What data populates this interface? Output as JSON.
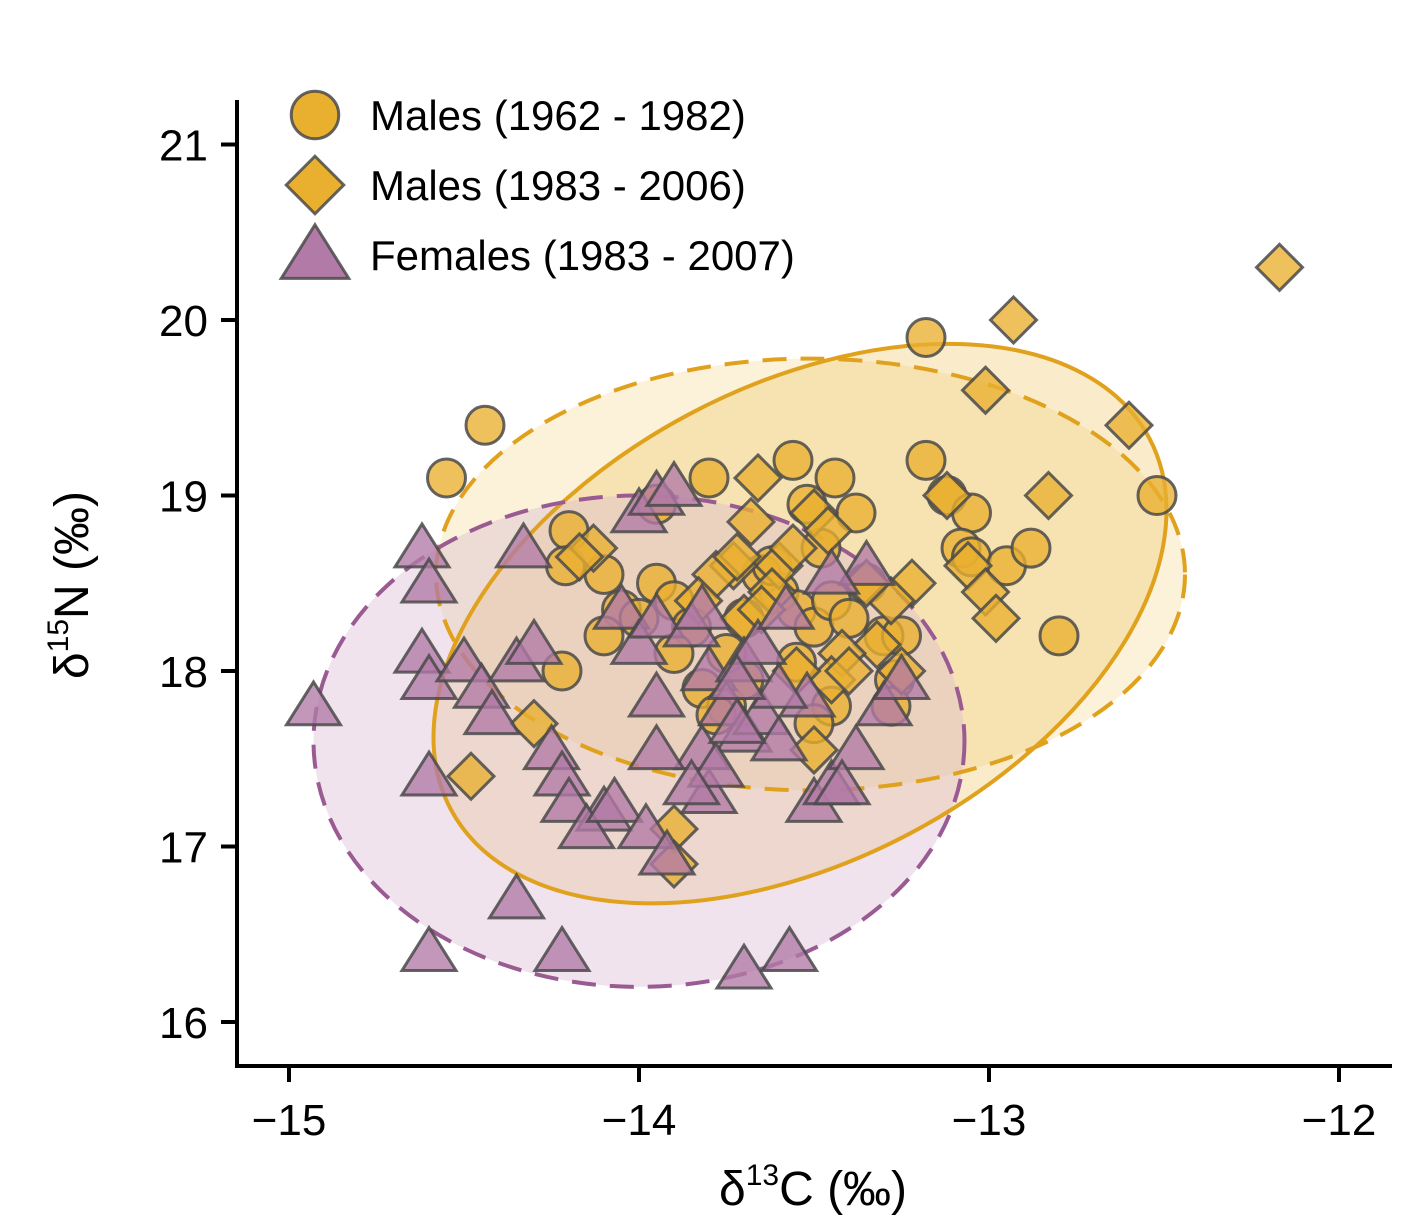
{
  "chart_data": {
    "type": "scatter",
    "xlabel": {
      "prefix": "δ",
      "sup": "13",
      "suffix": "C (‰)"
    },
    "ylabel": {
      "prefix": "δ",
      "sup": "15",
      "suffix": "N (‰)"
    },
    "xlim": [
      -15.15,
      -11.85
    ],
    "ylim": [
      15.75,
      21.3
    ],
    "xticks": [
      -15,
      -14,
      -13,
      -12
    ],
    "yticks": [
      16,
      17,
      18,
      19,
      20,
      21
    ],
    "xtick_labels": [
      "−15",
      "−14",
      "−13",
      "−12"
    ],
    "ytick_labels": [
      "16",
      "17",
      "18",
      "19",
      "20",
      "21"
    ],
    "grid": false,
    "legend_position": "top-left",
    "series": [
      {
        "name": "Males (1962 - 1982)",
        "marker": "circle",
        "color": "#E9B02F",
        "points": [
          [
            -14.44,
            19.4
          ],
          [
            -14.55,
            19.1
          ],
          [
            -14.2,
            18.8
          ],
          [
            -14.21,
            18.6
          ],
          [
            -14.1,
            18.55
          ],
          [
            -14.05,
            18.35
          ],
          [
            -14.1,
            18.2
          ],
          [
            -14.22,
            18.0
          ],
          [
            -13.95,
            18.5
          ],
          [
            -13.9,
            18.4
          ],
          [
            -13.85,
            18.25
          ],
          [
            -13.9,
            18.1
          ],
          [
            -13.82,
            17.9
          ],
          [
            -13.75,
            17.8
          ],
          [
            -13.7,
            18.3
          ],
          [
            -13.65,
            18.55
          ],
          [
            -13.6,
            18.45
          ],
          [
            -13.55,
            18.35
          ],
          [
            -13.5,
            18.25
          ],
          [
            -13.45,
            18.4
          ],
          [
            -13.4,
            18.3
          ],
          [
            -13.8,
            19.1
          ],
          [
            -13.56,
            19.2
          ],
          [
            -13.44,
            19.1
          ],
          [
            -13.38,
            18.9
          ],
          [
            -13.52,
            18.95
          ],
          [
            -13.62,
            18.6
          ],
          [
            -13.48,
            18.7
          ],
          [
            -13.35,
            18.5
          ],
          [
            -13.3,
            18.2
          ],
          [
            -13.25,
            18.2
          ],
          [
            -13.27,
            17.95
          ],
          [
            -13.28,
            17.8
          ],
          [
            -13.45,
            17.8
          ],
          [
            -13.5,
            17.7
          ],
          [
            -13.55,
            18.05
          ],
          [
            -13.7,
            17.95
          ],
          [
            -13.78,
            17.75
          ],
          [
            -13.18,
            19.9
          ],
          [
            -13.18,
            19.2
          ],
          [
            -13.12,
            19.0
          ],
          [
            -13.05,
            18.9
          ],
          [
            -13.08,
            18.7
          ],
          [
            -13.05,
            18.65
          ],
          [
            -12.95,
            18.6
          ],
          [
            -12.88,
            18.7
          ],
          [
            -12.8,
            18.2
          ],
          [
            -12.52,
            19.0
          ],
          [
            -13.95,
            18.95
          ],
          [
            -14.0,
            18.3
          ],
          [
            -13.75,
            18.1
          ]
        ]
      },
      {
        "name": "Males (1983 - 2006)",
        "marker": "diamond",
        "color": "#E9B02F",
        "points": [
          [
            -12.93,
            20.0
          ],
          [
            -12.6,
            19.4
          ],
          [
            -13.01,
            19.6
          ],
          [
            -12.83,
            19.0
          ],
          [
            -12.17,
            20.3
          ],
          [
            -13.12,
            19.0
          ],
          [
            -13.06,
            18.6
          ],
          [
            -13.01,
            18.45
          ],
          [
            -12.98,
            18.3
          ],
          [
            -13.22,
            18.5
          ],
          [
            -13.28,
            18.4
          ],
          [
            -13.32,
            18.15
          ],
          [
            -13.25,
            18.0
          ],
          [
            -13.35,
            18.5
          ],
          [
            -13.42,
            18.1
          ],
          [
            -13.45,
            17.95
          ],
          [
            -13.5,
            17.55
          ],
          [
            -13.6,
            18.6
          ],
          [
            -13.5,
            18.9
          ],
          [
            -13.46,
            18.8
          ],
          [
            -13.66,
            19.1
          ],
          [
            -13.68,
            18.85
          ],
          [
            -13.73,
            18.6
          ],
          [
            -13.78,
            18.55
          ],
          [
            -13.83,
            18.4
          ],
          [
            -13.7,
            18.3
          ],
          [
            -13.62,
            18.45
          ],
          [
            -13.56,
            18.7
          ],
          [
            -13.55,
            18.0
          ],
          [
            -14.13,
            18.7
          ],
          [
            -14.17,
            18.65
          ],
          [
            -14.3,
            17.7
          ],
          [
            -14.48,
            17.4
          ],
          [
            -13.9,
            17.1
          ],
          [
            -13.9,
            16.9
          ],
          [
            -13.72,
            18.65
          ],
          [
            -13.65,
            18.35
          ],
          [
            -13.4,
            18.0
          ]
        ]
      },
      {
        "name": "Females (1983 - 2007)",
        "marker": "triangle",
        "color": "#B27AA6",
        "points": [
          [
            -14.93,
            17.8
          ],
          [
            -14.62,
            18.7
          ],
          [
            -14.6,
            18.5
          ],
          [
            -14.62,
            18.1
          ],
          [
            -14.6,
            17.95
          ],
          [
            -14.5,
            18.05
          ],
          [
            -14.45,
            17.9
          ],
          [
            -14.42,
            17.75
          ],
          [
            -14.35,
            18.05
          ],
          [
            -14.3,
            18.15
          ],
          [
            -14.33,
            18.7
          ],
          [
            -14.6,
            17.4
          ],
          [
            -14.25,
            17.55
          ],
          [
            -14.22,
            17.4
          ],
          [
            -14.2,
            17.25
          ],
          [
            -14.1,
            17.2
          ],
          [
            -14.15,
            17.1
          ],
          [
            -14.07,
            17.25
          ],
          [
            -13.98,
            17.1
          ],
          [
            -13.92,
            16.95
          ],
          [
            -14.35,
            16.7
          ],
          [
            -14.22,
            16.4
          ],
          [
            -14.6,
            16.4
          ],
          [
            -13.7,
            16.3
          ],
          [
            -13.57,
            16.4
          ],
          [
            -14.0,
            18.9
          ],
          [
            -13.95,
            19.0
          ],
          [
            -13.9,
            19.05
          ],
          [
            -14.05,
            18.35
          ],
          [
            -14.0,
            18.15
          ],
          [
            -13.95,
            18.3
          ],
          [
            -13.85,
            18.25
          ],
          [
            -13.8,
            18.0
          ],
          [
            -13.75,
            17.8
          ],
          [
            -13.7,
            17.65
          ],
          [
            -13.65,
            17.75
          ],
          [
            -13.6,
            17.6
          ],
          [
            -13.7,
            18.05
          ],
          [
            -13.66,
            18.15
          ],
          [
            -13.58,
            18.35
          ],
          [
            -13.52,
            17.85
          ],
          [
            -13.6,
            17.9
          ],
          [
            -13.72,
            17.95
          ],
          [
            -13.82,
            17.55
          ],
          [
            -13.8,
            17.3
          ],
          [
            -13.78,
            17.45
          ],
          [
            -13.95,
            17.55
          ],
          [
            -13.85,
            17.35
          ],
          [
            -13.5,
            17.25
          ],
          [
            -13.45,
            17.35
          ],
          [
            -13.38,
            17.55
          ],
          [
            -13.35,
            18.6
          ],
          [
            -13.3,
            17.8
          ],
          [
            -13.25,
            17.95
          ],
          [
            -13.95,
            17.85
          ],
          [
            -13.82,
            18.35
          ],
          [
            -13.45,
            18.55
          ],
          [
            -13.42,
            17.35
          ],
          [
            -13.72,
            17.7
          ]
        ]
      }
    ],
    "ellipses": [
      {
        "series": "Males (1962 - 1982)",
        "style": "dashed",
        "color": "#E0A11D",
        "fill": "#F5DE9F",
        "fill_opacity": 0.4,
        "center": [
          -13.51,
          18.55
        ],
        "rx": 1.07,
        "ry": 1.23,
        "angle": 0
      },
      {
        "series": "Males (1983 - 2006)",
        "style": "solid",
        "color": "#E0A11D",
        "fill": "#F0C96A",
        "fill_opacity": 0.35,
        "center": [
          -13.54,
          18.27
        ],
        "rx": 1.13,
        "ry": 1.35,
        "angle": 28
      },
      {
        "series": "Females (1983 - 2007)",
        "style": "dashed",
        "color": "#9A5A92",
        "fill": "#D9B9D3",
        "fill_opacity": 0.4,
        "center": [
          -14.0,
          17.6
        ],
        "rx": 0.93,
        "ry": 1.4,
        "angle": 0
      }
    ]
  }
}
